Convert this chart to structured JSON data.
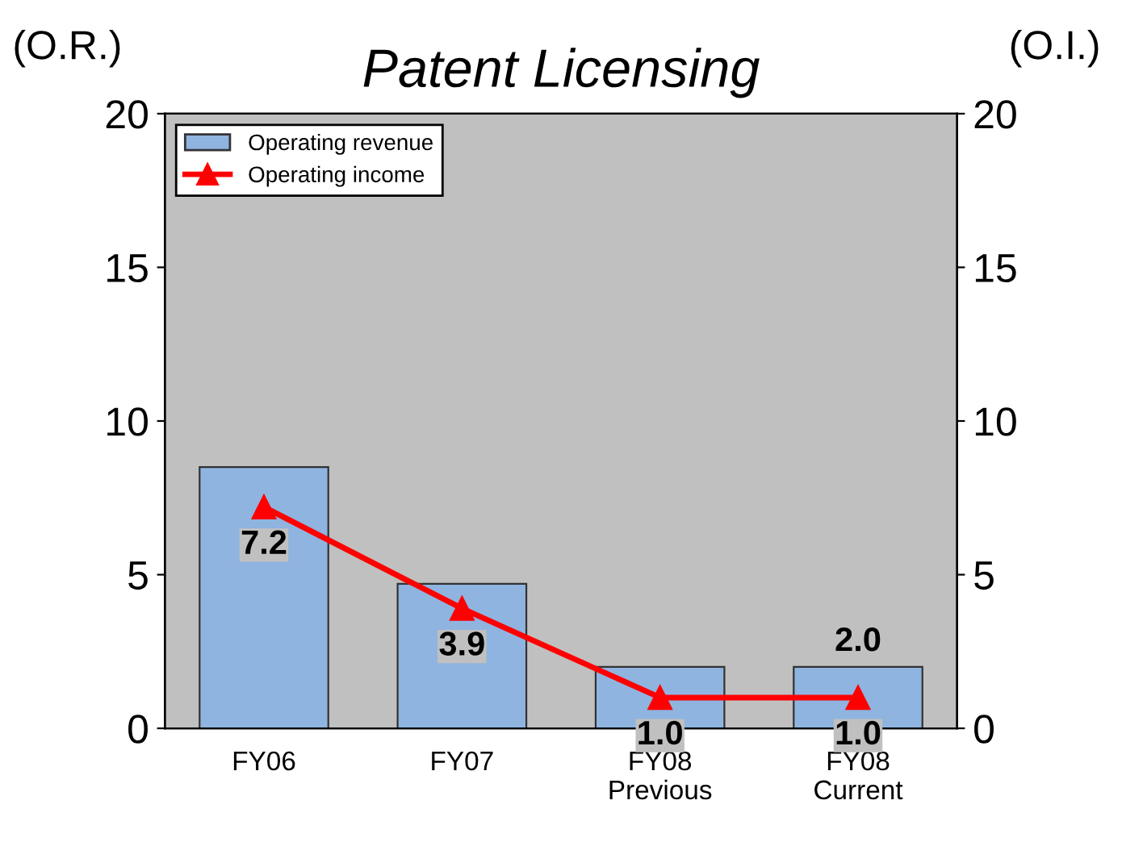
{
  "chart_data": {
    "type": "bar",
    "title": "Patent Licensing",
    "ylabel": "(O.R.)",
    "y2label": "(O.I.)",
    "categories": [
      "FY06",
      "FY07",
      "FY08\nPrevious",
      "FY08\nCurrent"
    ],
    "series": [
      {
        "name": "Operating revenue",
        "color": "#8fb4e0",
        "values": [
          8.5,
          4.7,
          2.0,
          2.0
        ],
        "value_labels": [
          null,
          null,
          null,
          "2.0"
        ]
      },
      {
        "name": "Operating income",
        "type": "line",
        "axis": "y2",
        "color": "#ff0000",
        "marker": "triangle",
        "values": [
          7.2,
          3.9,
          1.0,
          1.0
        ],
        "value_labels": [
          "7.2",
          "3.9",
          "1.0",
          "1.0"
        ]
      }
    ],
    "ylim": [
      0,
      20
    ],
    "yticks": [
      0,
      5,
      10,
      15,
      20
    ],
    "y2lim": [
      0,
      20
    ],
    "y2ticks": [
      0,
      5,
      10,
      15,
      20
    ],
    "grid": false,
    "legend": "top left"
  }
}
